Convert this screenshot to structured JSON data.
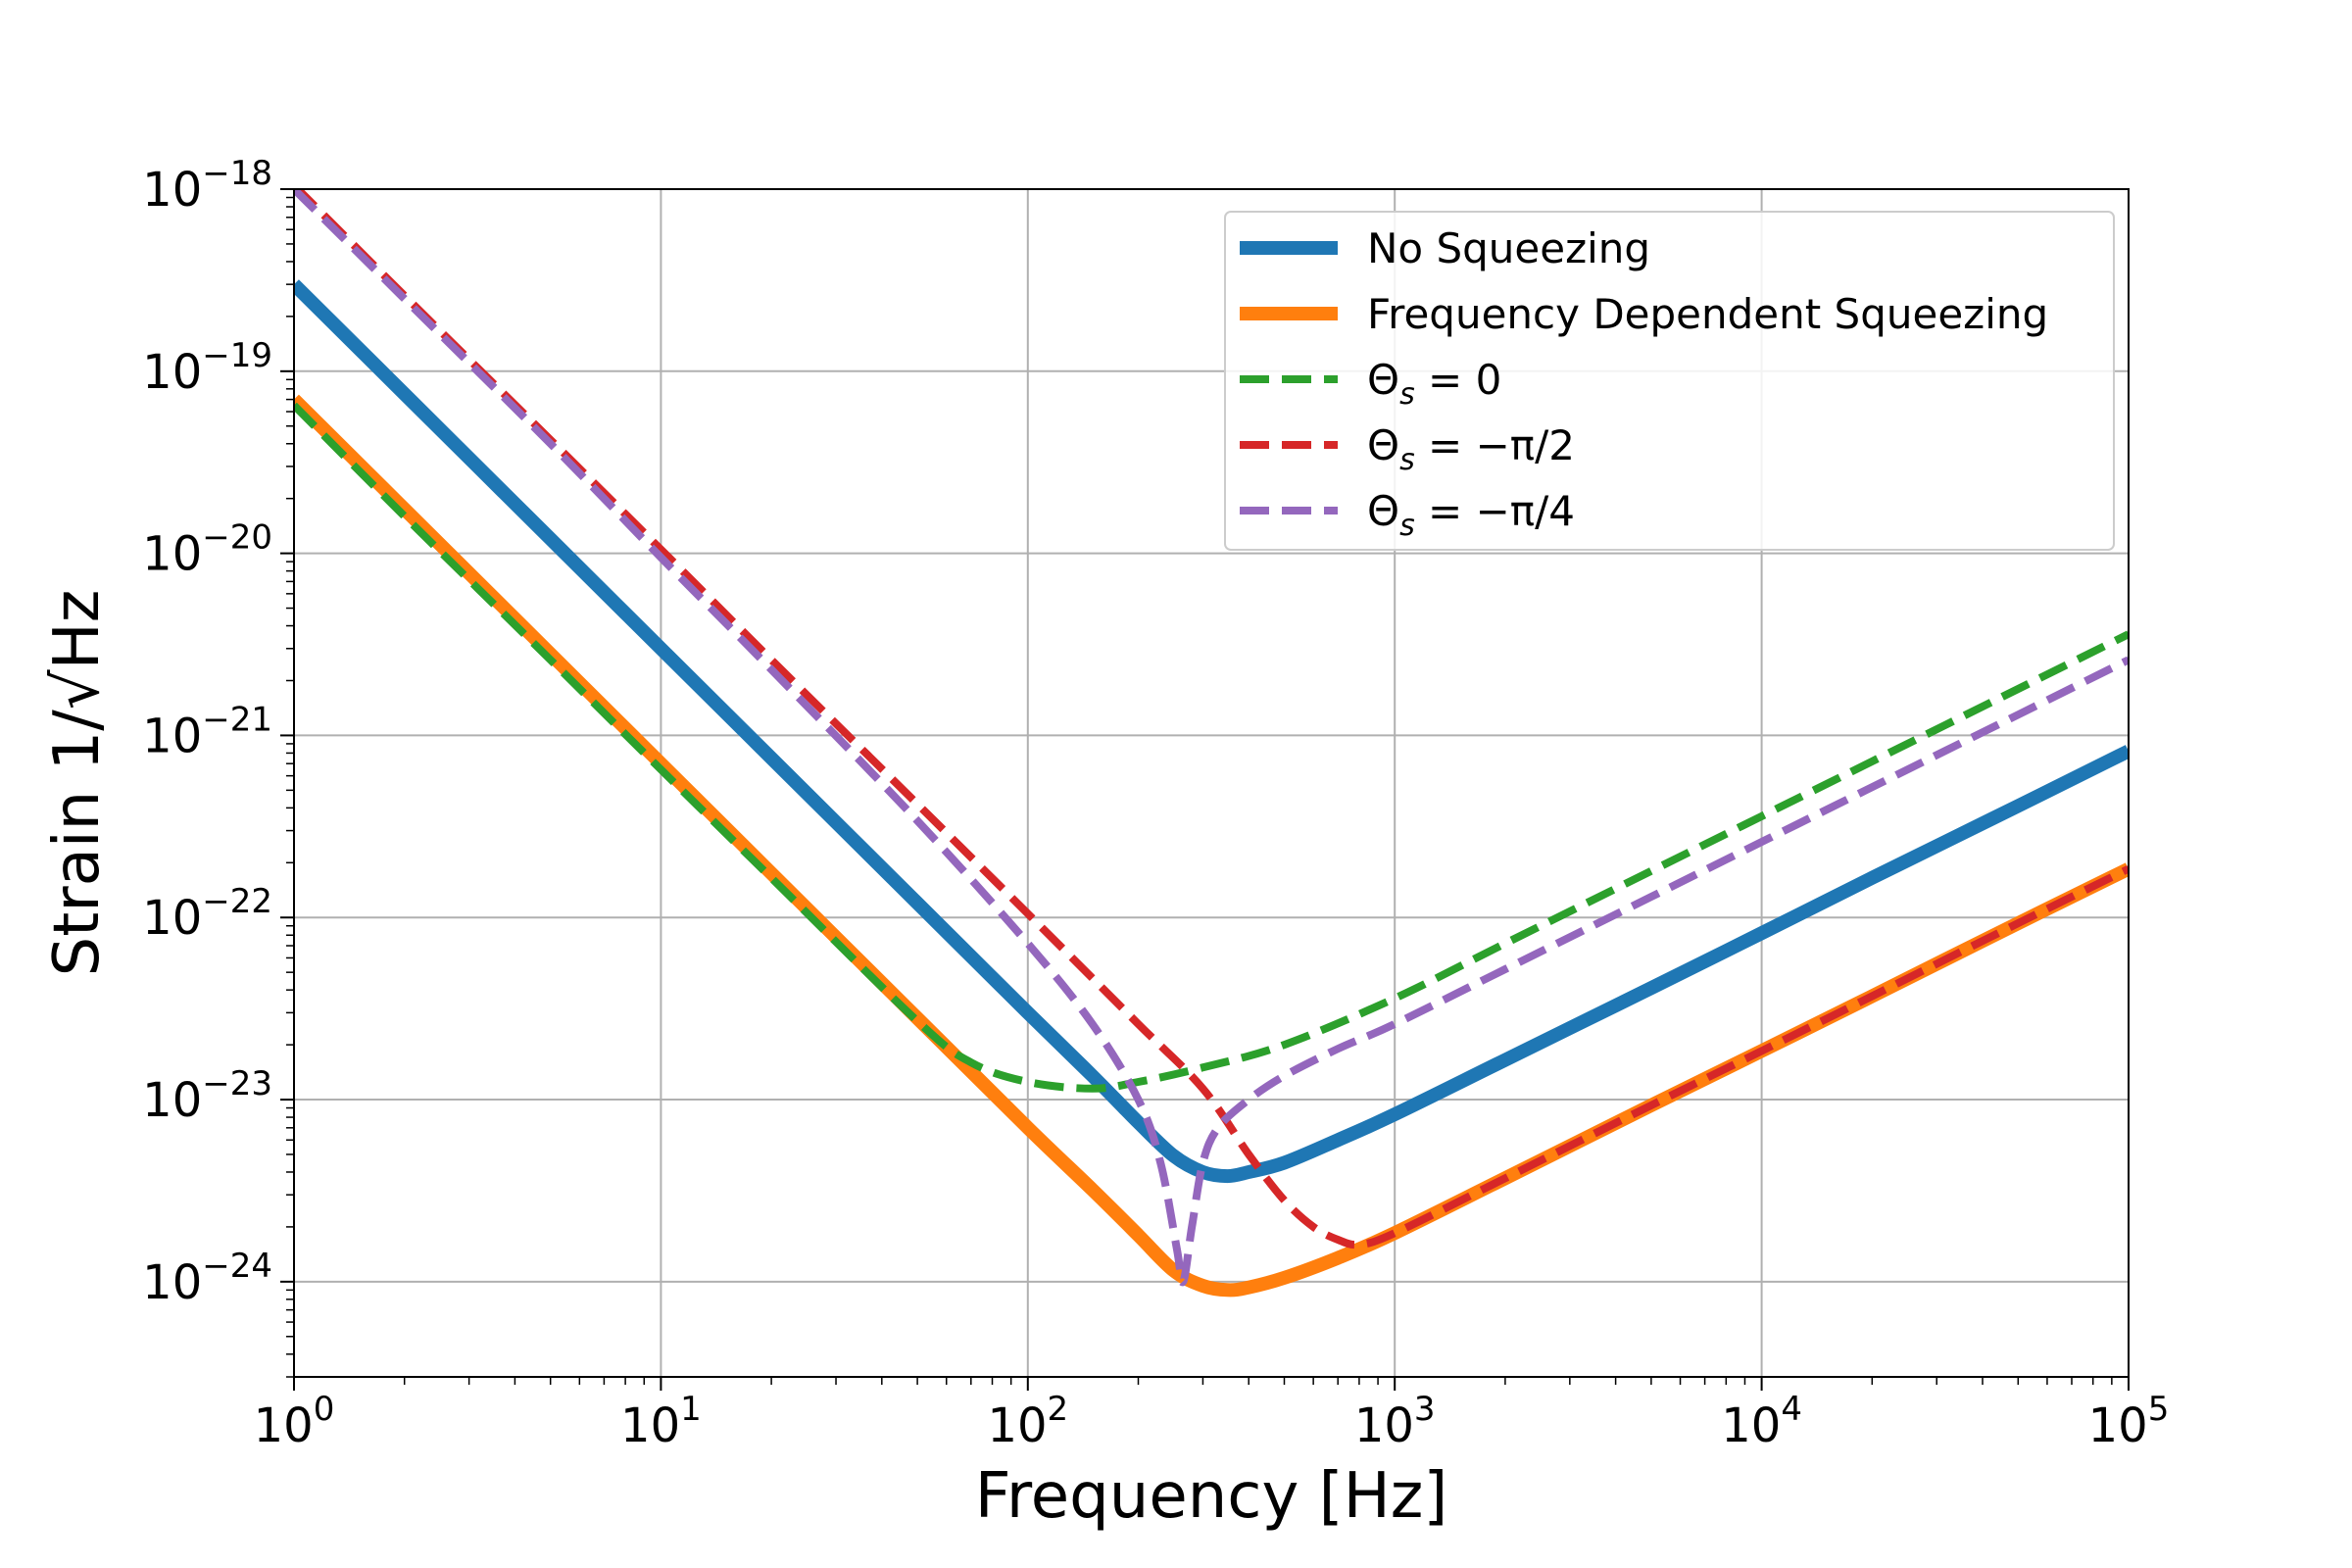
{
  "chart_data": {
    "type": "line",
    "xlabel": "Frequency [Hz]",
    "ylabel": "Strain 1/√Hz",
    "xscale": "log",
    "yscale": "log",
    "xlim": [
      1,
      100000
    ],
    "ylim": [
      3e-25,
      1e-18
    ],
    "grid": true,
    "legend_position": "top-right",
    "x_ticks": [
      {
        "value": 1,
        "base": "10",
        "exp": "0"
      },
      {
        "value": 10,
        "base": "10",
        "exp": "1"
      },
      {
        "value": 100,
        "base": "10",
        "exp": "2"
      },
      {
        "value": 1000,
        "base": "10",
        "exp": "3"
      },
      {
        "value": 10000,
        "base": "10",
        "exp": "4"
      },
      {
        "value": 100000,
        "base": "10",
        "exp": "5"
      }
    ],
    "y_ticks": [
      {
        "value": 1e-24,
        "base": "10",
        "exp": "−24"
      },
      {
        "value": 1e-23,
        "base": "10",
        "exp": "−23"
      },
      {
        "value": 1e-22,
        "base": "10",
        "exp": "−22"
      },
      {
        "value": 1e-21,
        "base": "10",
        "exp": "−21"
      },
      {
        "value": 1e-20,
        "base": "10",
        "exp": "−20"
      },
      {
        "value": 1e-19,
        "base": "10",
        "exp": "−19"
      },
      {
        "value": 1e-18,
        "base": "10",
        "exp": "−18"
      }
    ],
    "series": [
      {
        "name": "No Squeezing",
        "color": "#1f77b4",
        "style": "solid",
        "x": [
          1,
          2,
          5,
          10,
          20,
          50,
          100,
          150,
          200,
          250,
          300,
          350,
          400,
          500,
          700,
          1000,
          2000,
          5000,
          10000,
          20000,
          50000,
          100000
        ],
        "y": [
          3e-19,
          7.5e-20,
          1.2e-20,
          3e-21,
          7.5e-22,
          1.2e-22,
          3e-23,
          1.35e-23,
          7.5e-24,
          4.9e-24,
          4e-24,
          3.8e-24,
          4e-24,
          4.5e-24,
          6e-24,
          8.3e-24,
          1.65e-23,
          4.1e-23,
          8.2e-23,
          1.65e-22,
          4.1e-22,
          8.2e-22
        ]
      },
      {
        "name": "Frequency Dependent Squeezing",
        "color": "#ff7f0e",
        "style": "solid",
        "x": [
          1,
          2,
          5,
          10,
          20,
          50,
          100,
          150,
          200,
          250,
          300,
          350,
          400,
          500,
          700,
          1000,
          2000,
          5000,
          10000,
          20000,
          50000,
          100000
        ],
        "y": [
          7e-20,
          1.75e-20,
          2.8e-21,
          7e-22,
          1.75e-22,
          2.8e-23,
          7e-24,
          3.2e-24,
          1.8e-24,
          1.15e-24,
          9.5e-25,
          9e-25,
          9.3e-25,
          1.05e-24,
          1.35e-24,
          1.85e-24,
          3.7e-24,
          9.3e-24,
          1.85e-23,
          3.7e-23,
          9.3e-23,
          1.85e-22
        ]
      },
      {
        "name": "Θs = 0",
        "label_main": "Θ",
        "label_sub": "s",
        "label_rest": " = 0",
        "color": "#2ca02c",
        "style": "dashed",
        "x": [
          1,
          2,
          5,
          10,
          20,
          50,
          70,
          100,
          150,
          200,
          300,
          500,
          1000,
          2000,
          5000,
          10000,
          20000,
          50000,
          100000
        ],
        "y": [
          6.5e-20,
          1.6e-20,
          2.6e-21,
          6.5e-22,
          1.65e-22,
          2.7e-23,
          1.6e-23,
          1.25e-23,
          1.15e-23,
          1.25e-23,
          1.5e-23,
          2e-23,
          3.6e-23,
          7.2e-23,
          1.8e-22,
          3.6e-22,
          7.2e-22,
          1.8e-21,
          3.6e-21
        ]
      },
      {
        "name": "Θs = −π/2",
        "label_main": "Θ",
        "label_sub": "s",
        "label_rest": " = −π/2",
        "color": "#d62728",
        "style": "dashed",
        "x": [
          1,
          2,
          5,
          10,
          20,
          50,
          100,
          200,
          300,
          400,
          500,
          600,
          700,
          800,
          1000,
          2000,
          5000,
          10000,
          20000,
          50000,
          100000
        ],
        "y": [
          1.05e-18,
          2.6e-19,
          4.2e-20,
          1.05e-20,
          2.6e-21,
          4.2e-22,
          1.05e-22,
          2.6e-23,
          1.15e-23,
          5e-24,
          2.8e-24,
          2e-24,
          1.7e-24,
          1.6e-24,
          1.85e-24,
          3.7e-24,
          9.3e-24,
          1.85e-23,
          3.7e-23,
          9.3e-23,
          1.85e-22
        ]
      },
      {
        "name": "Θs = −π/4",
        "label_main": "Θ",
        "label_sub": "s",
        "label_rest": " = −π/4",
        "color": "#9467bd",
        "style": "dashed",
        "x": [
          1,
          2,
          5,
          10,
          20,
          50,
          100,
          150,
          200,
          230,
          255,
          265,
          280,
          300,
          330,
          400,
          500,
          700,
          1000,
          2000,
          5000,
          10000,
          20000,
          50000,
          100000
        ],
        "y": [
          1e-18,
          2.5e-19,
          4e-20,
          9.5e-21,
          2.3e-21,
          3.4e-22,
          7.2e-23,
          2.6e-23,
          1e-23,
          4.5e-24,
          1.5e-24,
          1e-24,
          2e-24,
          4.5e-24,
          7e-24,
          1e-23,
          1.35e-23,
          1.9e-23,
          2.6e-23,
          5.2e-23,
          1.3e-22,
          2.6e-22,
          5.2e-22,
          1.3e-21,
          2.6e-21
        ]
      }
    ]
  }
}
